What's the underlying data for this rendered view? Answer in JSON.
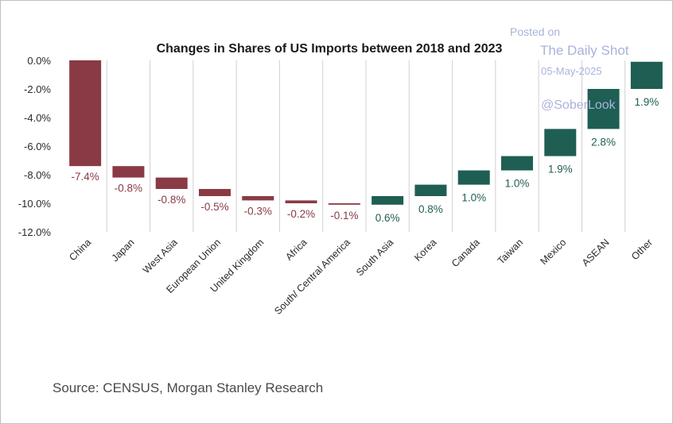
{
  "chart_data": {
    "type": "bar",
    "subtype": "waterfall",
    "title": "Changes in Shares of US Imports between 2018 and 2023",
    "xlabel": "",
    "ylabel": "",
    "ylim": [
      -12,
      0
    ],
    "yticks": [
      0,
      -2,
      -4,
      -6,
      -8,
      -10,
      -12
    ],
    "ytick_labels": [
      "0.0%",
      "-2.0%",
      "-4.0%",
      "-6.0%",
      "-8.0%",
      "-10.0%",
      "-12.0%"
    ],
    "categories": [
      "China",
      "Japan",
      "West Asia",
      "European Union",
      "United Kingdom",
      "Africa",
      "South/ Central America",
      "South Asia",
      "Korea",
      "Canada",
      "Taiwan",
      "Mexico",
      "ASEAN",
      "Other"
    ],
    "values": [
      -7.4,
      -0.8,
      -0.8,
      -0.5,
      -0.3,
      -0.2,
      -0.1,
      0.6,
      0.8,
      1.0,
      1.0,
      1.9,
      2.8,
      1.9
    ],
    "data_labels": [
      "-7.4%",
      "-0.8%",
      "-0.8%",
      "-0.5%",
      "-0.3%",
      "-0.2%",
      "-0.1%",
      "0.6%",
      "0.8%",
      "1.0%",
      "1.0%",
      "1.9%",
      "2.8%",
      "1.9%"
    ],
    "colors": {
      "negative": "#8a3a45",
      "positive": "#1f5e53",
      "negative_label": "#8a3a45",
      "positive_label": "#1f5e53",
      "gridline": "#d0d0d0"
    }
  },
  "source": "Source: CENSUS, Morgan Stanley Research",
  "watermark": {
    "line1": "Posted on",
    "line2": "The Daily Shot",
    "line3": "05-May-2025",
    "line4": "@SoberLook"
  }
}
